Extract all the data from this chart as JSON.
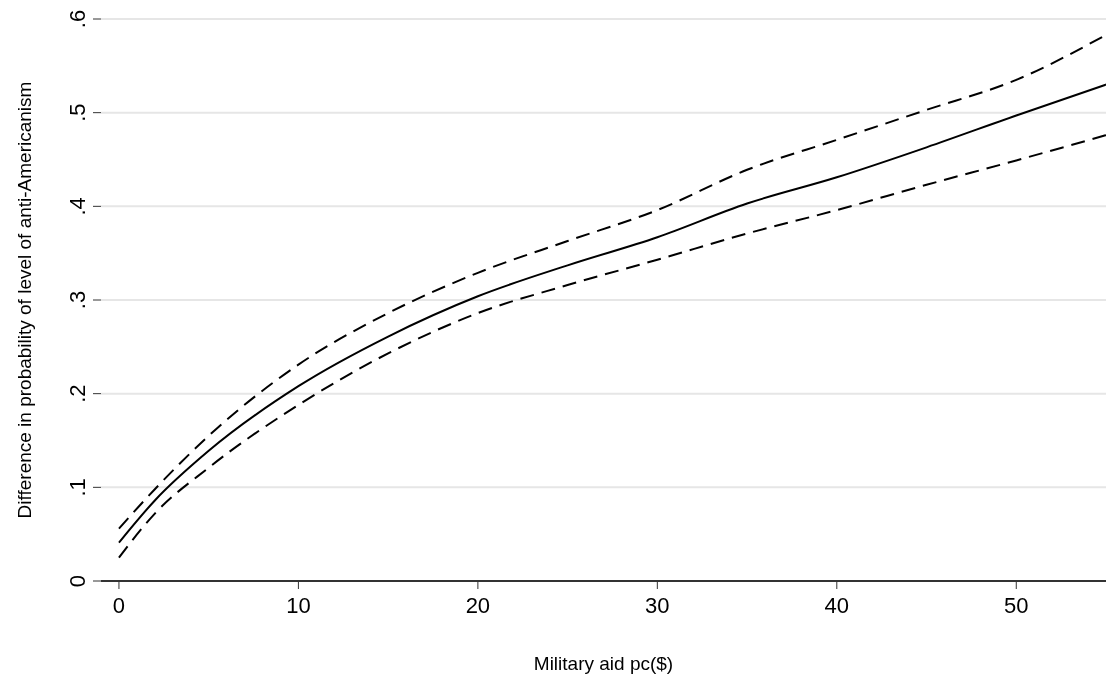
{
  "chart_data": {
    "type": "line",
    "xlabel": "Military aid pc($)",
    "ylabel": "Difference in probability of level of anti-Americanism",
    "xlim": [
      -1,
      55
    ],
    "xticks": [
      0,
      10,
      20,
      30,
      40,
      50
    ],
    "ylim": [
      0,
      0.6
    ],
    "yticks": [
      0,
      {
        "value": 0.1,
        "label": ".1"
      },
      {
        "value": 0.2,
        "label": ".2"
      },
      {
        "value": 0.3,
        "label": ".3"
      },
      {
        "value": 0.4,
        "label": ".4"
      },
      {
        "value": 0.5,
        "label": ".5"
      },
      {
        "value": 0.6,
        "label": ".6"
      }
    ],
    "grid": "y",
    "legend": false,
    "marker": "none",
    "x": [
      0,
      2,
      5,
      10,
      15,
      20,
      25,
      30,
      35,
      40,
      45,
      50,
      55
    ],
    "series": [
      {
        "color": "#000000",
        "line_style": "dashed",
        "values": [
          0.056,
          0.098,
          0.155,
          0.231,
          0.286,
          0.329,
          0.363,
          0.396,
          0.439,
          0.471,
          0.503,
          0.535,
          0.583
        ]
      },
      {
        "color": "#000000",
        "line_style": "solid",
        "values": [
          0.041,
          0.086,
          0.139,
          0.208,
          0.261,
          0.304,
          0.337,
          0.367,
          0.403,
          0.431,
          0.463,
          0.497,
          0.53
        ]
      },
      {
        "color": "#000000",
        "line_style": "dashed",
        "values": [
          0.025,
          0.072,
          0.121,
          0.188,
          0.243,
          0.286,
          0.316,
          0.343,
          0.371,
          0.396,
          0.423,
          0.449,
          0.476
        ]
      }
    ]
  }
}
